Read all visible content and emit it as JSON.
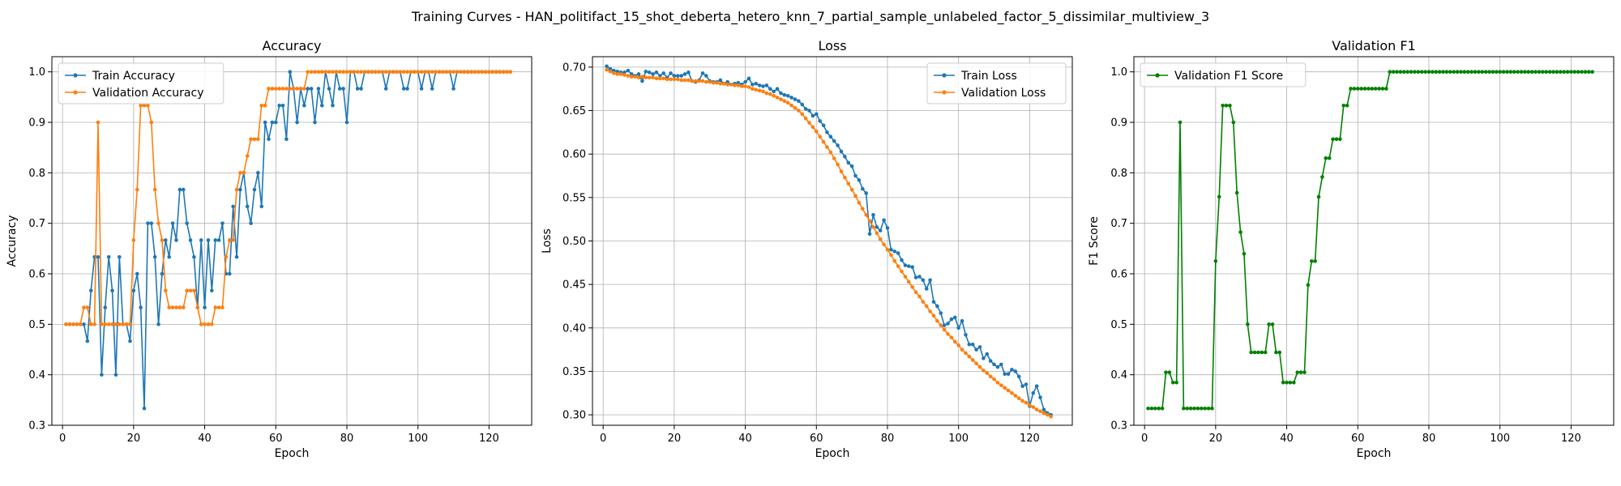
{
  "figure": {
    "suptitle": "Training Curves - HAN_politifact_15_shot_deberta_hetero_knn_7_partial_sample_unlabeled_factor_5_dissimilar_multiview_3"
  },
  "colors": {
    "blue": "#1f77b4",
    "orange": "#ff7f0e",
    "green": "#008000",
    "grid": "#b0b0b0"
  },
  "chart_data": [
    {
      "type": "line",
      "title": "Accuracy",
      "xlabel": "Epoch",
      "ylabel": "Accuracy",
      "xlim": [
        -3,
        132
      ],
      "ylim": [
        0.3,
        1.03
      ],
      "xticks": [
        0,
        20,
        40,
        60,
        80,
        100,
        120
      ],
      "yticks": [
        0.3,
        0.4,
        0.5,
        0.6,
        0.7,
        0.8,
        0.9,
        1.0
      ],
      "grid": true,
      "legend": "top-left",
      "series": [
        {
          "name": "Train Accuracy",
          "color": "#1f77b4",
          "values": [
            0.5,
            0.5,
            0.5,
            0.5,
            0.5,
            0.5,
            0.4667,
            0.5667,
            0.6333,
            0.6333,
            0.4,
            0.5333,
            0.6333,
            0.5667,
            0.4,
            0.6333,
            0.5,
            0.5,
            0.4667,
            0.5667,
            0.6,
            0.5333,
            0.3333,
            0.7,
            0.7,
            0.6333,
            0.5,
            0.6,
            0.6667,
            0.6333,
            0.7,
            0.6667,
            0.7667,
            0.7667,
            0.7,
            0.6667,
            0.6333,
            0.5333,
            0.6667,
            0.5333,
            0.6667,
            0.5667,
            0.6667,
            0.6667,
            0.7,
            0.6,
            0.6,
            0.7333,
            0.6333,
            0.7667,
            0.8,
            0.7333,
            0.7,
            0.7667,
            0.8,
            0.7333,
            0.9,
            0.8667,
            0.9,
            0.9,
            0.9333,
            0.9333,
            0.8667,
            1.0,
            0.9667,
            0.9,
            0.9667,
            0.9333,
            0.9667,
            0.9667,
            0.9,
            0.9667,
            0.9333,
            1.0,
            0.9667,
            0.9333,
            1.0,
            0.9667,
            0.9667,
            0.9,
            1.0,
            1.0,
            0.9667,
            0.9667,
            1.0,
            1.0,
            1.0,
            1.0,
            1.0,
            1.0,
            0.9667,
            1.0,
            1.0,
            1.0,
            1.0,
            0.9667,
            0.9667,
            1.0,
            1.0,
            1.0,
            0.9667,
            1.0,
            1.0,
            0.9667,
            1.0,
            1.0,
            1.0,
            1.0,
            1.0,
            0.9667,
            1.0,
            1.0,
            1.0,
            1.0,
            1.0,
            1.0,
            1.0,
            1.0,
            1.0,
            1.0,
            1.0,
            1.0,
            1.0,
            1.0,
            1.0,
            1.0
          ]
        },
        {
          "name": "Validation Accuracy",
          "color": "#ff7f0e",
          "values": [
            0.5,
            0.5,
            0.5,
            0.5,
            0.5,
            0.5333,
            0.5333,
            0.5,
            0.5,
            0.9,
            0.5,
            0.5,
            0.5,
            0.5,
            0.5,
            0.5,
            0.5,
            0.5,
            0.5,
            0.6667,
            0.7667,
            0.9333,
            0.9333,
            0.9333,
            0.9,
            0.7667,
            0.7,
            0.6667,
            0.5667,
            0.5333,
            0.5333,
            0.5333,
            0.5333,
            0.5333,
            0.5667,
            0.5667,
            0.5667,
            0.5333,
            0.5,
            0.5,
            0.5,
            0.5,
            0.5333,
            0.5333,
            0.5333,
            0.6333,
            0.6667,
            0.6667,
            0.7667,
            0.8,
            0.8,
            0.8333,
            0.8667,
            0.8667,
            0.8667,
            0.9333,
            0.9333,
            0.9667,
            0.9667,
            0.9667,
            0.9667,
            0.9667,
            0.9667,
            0.9667,
            0.9667,
            0.9667,
            0.9667,
            0.9667,
            1.0,
            1.0,
            1.0,
            1.0,
            1.0,
            1.0,
            1.0,
            1.0,
            1.0,
            1.0,
            1.0,
            1.0,
            1.0,
            1.0,
            1.0,
            1.0,
            1.0,
            1.0,
            1.0,
            1.0,
            1.0,
            1.0,
            1.0,
            1.0,
            1.0,
            1.0,
            1.0,
            1.0,
            1.0,
            1.0,
            1.0,
            1.0,
            1.0,
            1.0,
            1.0,
            1.0,
            1.0,
            1.0,
            1.0,
            1.0,
            1.0,
            1.0,
            1.0,
            1.0,
            1.0,
            1.0,
            1.0,
            1.0,
            1.0,
            1.0,
            1.0,
            1.0,
            1.0,
            1.0,
            1.0,
            1.0,
            1.0,
            1.0
          ]
        }
      ]
    },
    {
      "type": "line",
      "title": "Loss",
      "xlabel": "Epoch",
      "ylabel": "Loss",
      "xlim": [
        -3,
        132
      ],
      "ylim": [
        0.288,
        0.712
      ],
      "xticks": [
        0,
        20,
        40,
        60,
        80,
        100,
        120
      ],
      "yticks": [
        0.3,
        0.35,
        0.4,
        0.45,
        0.5,
        0.55,
        0.6,
        0.65,
        0.7
      ],
      "grid": true,
      "legend": "top-right",
      "series": [
        {
          "name": "Train Loss",
          "color": "#1f77b4",
          "values": [
            0.701,
            0.698,
            0.696,
            0.695,
            0.694,
            0.694,
            0.696,
            0.692,
            0.69,
            0.692,
            0.684,
            0.695,
            0.694,
            0.692,
            0.694,
            0.69,
            0.693,
            0.688,
            0.693,
            0.69,
            0.69,
            0.69,
            0.692,
            0.694,
            0.684,
            0.683,
            0.685,
            0.693,
            0.69,
            0.684,
            0.683,
            0.683,
            0.685,
            0.681,
            0.683,
            0.68,
            0.681,
            0.682,
            0.68,
            0.683,
            0.687,
            0.68,
            0.681,
            0.679,
            0.678,
            0.679,
            0.675,
            0.672,
            0.675,
            0.67,
            0.668,
            0.667,
            0.665,
            0.663,
            0.661,
            0.657,
            0.652,
            0.65,
            0.644,
            0.646,
            0.638,
            0.633,
            0.625,
            0.62,
            0.615,
            0.61,
            0.603,
            0.597,
            0.59,
            0.586,
            0.575,
            0.57,
            0.56,
            0.555,
            0.508,
            0.53,
            0.516,
            0.512,
            0.524,
            0.515,
            0.49,
            0.488,
            0.486,
            0.478,
            0.472,
            0.471,
            0.47,
            0.458,
            0.459,
            0.455,
            0.445,
            0.455,
            0.43,
            0.425,
            0.417,
            0.403,
            0.405,
            0.41,
            0.412,
            0.4,
            0.408,
            0.392,
            0.381,
            0.381,
            0.375,
            0.378,
            0.365,
            0.37,
            0.362,
            0.358,
            0.355,
            0.358,
            0.347,
            0.347,
            0.352,
            0.35,
            0.344,
            0.333,
            0.335,
            0.31,
            0.325,
            0.333,
            0.32,
            0.306,
            0.302,
            0.3
          ]
        },
        {
          "name": "Validation Loss",
          "color": "#ff7f0e",
          "values": [
            0.697,
            0.695,
            0.693,
            0.692,
            0.692,
            0.691,
            0.69,
            0.689,
            0.689,
            0.688,
            0.689,
            0.688,
            0.688,
            0.688,
            0.687,
            0.687,
            0.687,
            0.686,
            0.686,
            0.686,
            0.686,
            0.685,
            0.685,
            0.685,
            0.684,
            0.684,
            0.684,
            0.684,
            0.683,
            0.683,
            0.682,
            0.682,
            0.681,
            0.681,
            0.68,
            0.68,
            0.679,
            0.679,
            0.678,
            0.678,
            0.677,
            0.675,
            0.674,
            0.673,
            0.672,
            0.67,
            0.669,
            0.667,
            0.665,
            0.663,
            0.661,
            0.659,
            0.656,
            0.653,
            0.65,
            0.646,
            0.641,
            0.636,
            0.631,
            0.626,
            0.62,
            0.614,
            0.608,
            0.602,
            0.595,
            0.588,
            0.58,
            0.573,
            0.566,
            0.559,
            0.552,
            0.544,
            0.537,
            0.53,
            0.523,
            0.516,
            0.509,
            0.502,
            0.496,
            0.49,
            0.484,
            0.477,
            0.471,
            0.465,
            0.459,
            0.453,
            0.447,
            0.441,
            0.436,
            0.43,
            0.425,
            0.419,
            0.414,
            0.408,
            0.403,
            0.398,
            0.393,
            0.389,
            0.384,
            0.38,
            0.375,
            0.371,
            0.367,
            0.363,
            0.359,
            0.355,
            0.351,
            0.348,
            0.344,
            0.341,
            0.337,
            0.334,
            0.331,
            0.328,
            0.325,
            0.322,
            0.319,
            0.316,
            0.314,
            0.311,
            0.309,
            0.306,
            0.304,
            0.302,
            0.3,
            0.298
          ]
        }
      ]
    },
    {
      "type": "line",
      "title": "Validation F1",
      "xlabel": "Epoch",
      "ylabel": "F1 Score",
      "xlim": [
        -3,
        132
      ],
      "ylim": [
        0.3,
        1.03
      ],
      "xticks": [
        0,
        20,
        40,
        60,
        80,
        100,
        120
      ],
      "yticks": [
        0.3,
        0.4,
        0.5,
        0.6,
        0.7,
        0.8,
        0.9,
        1.0
      ],
      "grid": true,
      "legend": "top-left",
      "series": [
        {
          "name": "Validation F1 Score",
          "color": "#008000",
          "values": [
            0.3333,
            0.3333,
            0.3333,
            0.3333,
            0.3333,
            0.4048,
            0.4048,
            0.3846,
            0.3846,
            0.9,
            0.3333,
            0.3333,
            0.3333,
            0.3333,
            0.3333,
            0.3333,
            0.3333,
            0.3333,
            0.3333,
            0.625,
            0.7525,
            0.9333,
            0.9333,
            0.9333,
            0.9,
            0.7604,
            0.6825,
            0.6396,
            0.5,
            0.4444,
            0.4444,
            0.4444,
            0.4444,
            0.4444,
            0.5,
            0.5,
            0.4444,
            0.4444,
            0.3846,
            0.3846,
            0.3846,
            0.3846,
            0.4048,
            0.4048,
            0.4048,
            0.5778,
            0.625,
            0.625,
            0.7525,
            0.7917,
            0.8291,
            0.8291,
            0.8667,
            0.8667,
            0.8667,
            0.9333,
            0.9333,
            0.9667,
            0.9667,
            0.9667,
            0.9667,
            0.9667,
            0.9667,
            0.9667,
            0.9667,
            0.9667,
            0.9667,
            0.9667,
            1.0,
            1.0,
            1.0,
            1.0,
            1.0,
            1.0,
            1.0,
            1.0,
            1.0,
            1.0,
            1.0,
            1.0,
            1.0,
            1.0,
            1.0,
            1.0,
            1.0,
            1.0,
            1.0,
            1.0,
            1.0,
            1.0,
            1.0,
            1.0,
            1.0,
            1.0,
            1.0,
            1.0,
            1.0,
            1.0,
            1.0,
            1.0,
            1.0,
            1.0,
            1.0,
            1.0,
            1.0,
            1.0,
            1.0,
            1.0,
            1.0,
            1.0,
            1.0,
            1.0,
            1.0,
            1.0,
            1.0,
            1.0,
            1.0,
            1.0,
            1.0,
            1.0,
            1.0,
            1.0,
            1.0,
            1.0,
            1.0,
            1.0
          ]
        }
      ]
    }
  ]
}
